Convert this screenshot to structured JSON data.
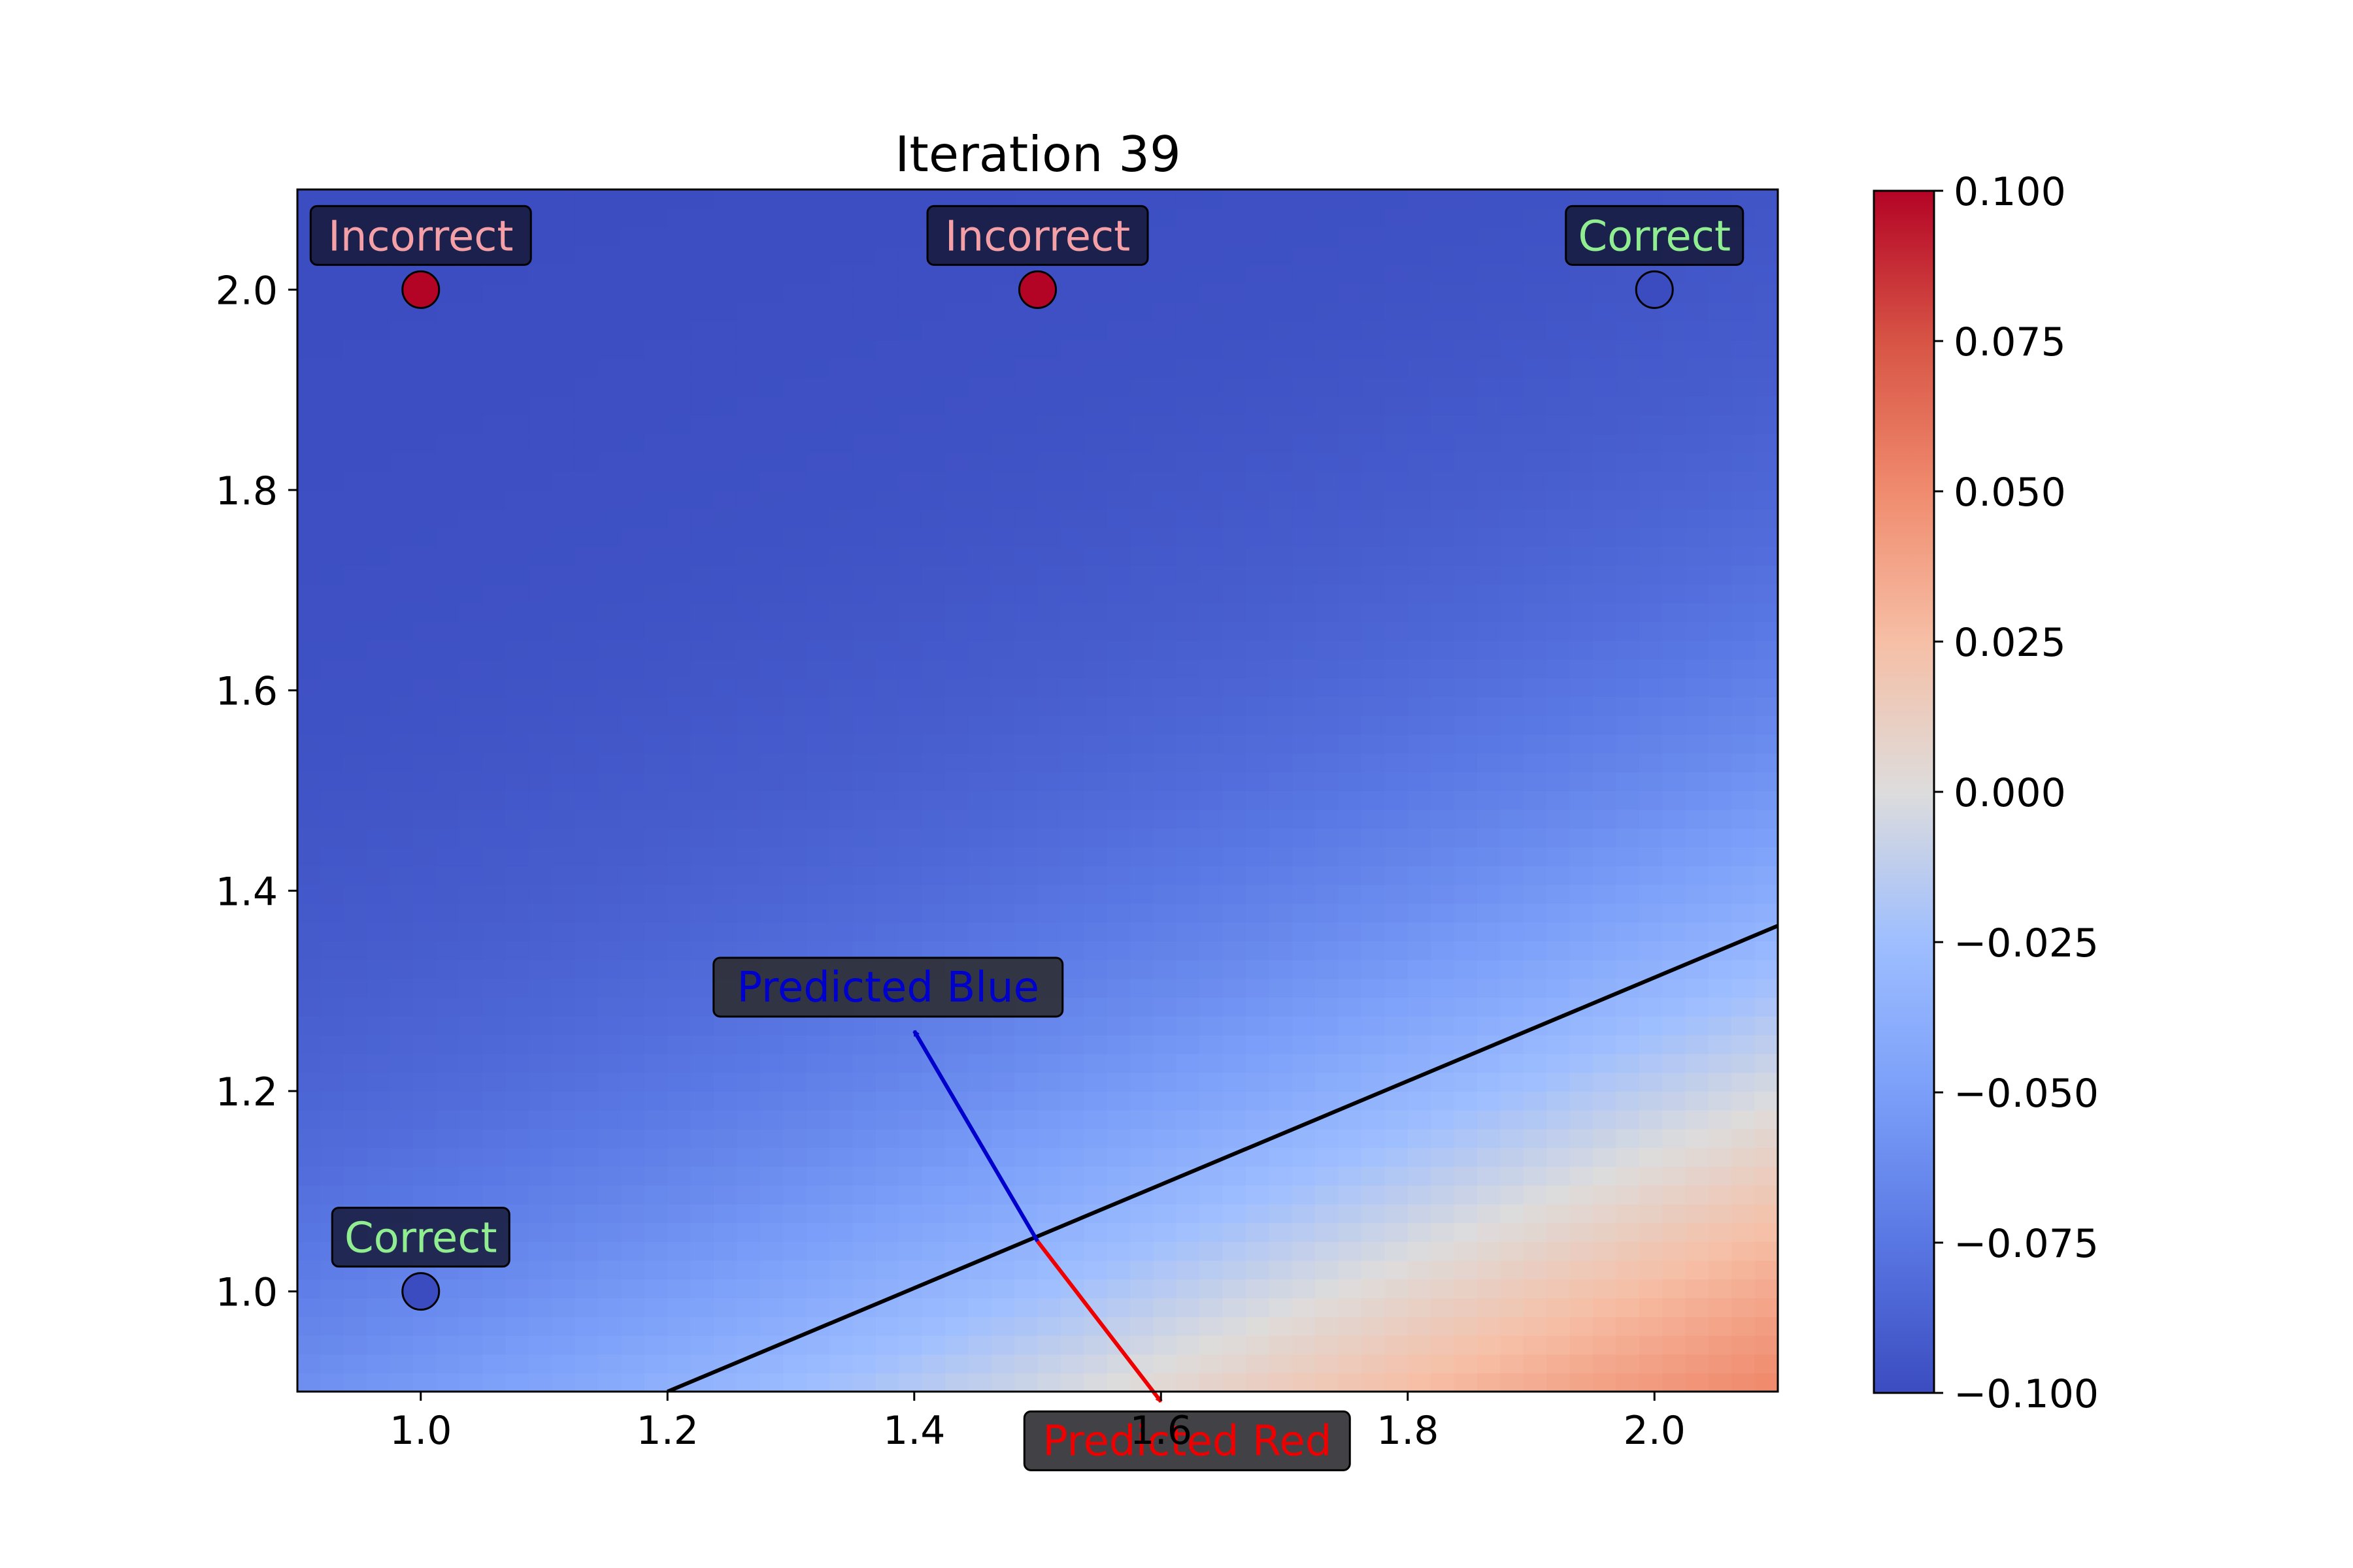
{
  "chart_data": {
    "type": "heatmap",
    "title": "Iteration 39",
    "xlabel": "",
    "ylabel": "",
    "xlim": [
      0.9,
      2.1
    ],
    "ylim": [
      0.9,
      2.1
    ],
    "xticks": [
      1.0,
      1.2,
      1.4,
      1.6,
      1.8,
      2.0
    ],
    "yticks": [
      1.0,
      1.2,
      1.4,
      1.6,
      1.8,
      2.0
    ],
    "xtick_labels": [
      "1.0",
      "1.2",
      "1.4",
      "1.6",
      "1.8",
      "2.0"
    ],
    "ytick_labels": [
      "1.0",
      "1.2",
      "1.4",
      "1.6",
      "1.8",
      "2.0"
    ],
    "colormap": "coolwarm",
    "colorbar": {
      "min": -0.1,
      "max": 0.1,
      "ticks": [
        0.1,
        0.075,
        0.05,
        0.025,
        0.0,
        -0.025,
        -0.05,
        -0.075,
        -0.1
      ],
      "tick_labels": [
        "0.100",
        "0.075",
        "0.050",
        "0.025",
        "0.000",
        "−0.025",
        "−0.050",
        "−0.075",
        "−0.100"
      ]
    },
    "decision_boundary": [
      [
        1.2,
        0.9
      ],
      [
        2.1,
        1.365
      ]
    ],
    "points": [
      {
        "x": 1.0,
        "y": 2.0,
        "class_color": "#b40426",
        "label": "Incorrect",
        "label_color": "#f4a0a6"
      },
      {
        "x": 1.5,
        "y": 2.0,
        "class_color": "#b40426",
        "label": "Incorrect",
        "label_color": "#f4a0a6"
      },
      {
        "x": 2.0,
        "y": 2.0,
        "class_color": "#3b4cc0",
        "label": "Correct",
        "label_color": "#90ee90"
      },
      {
        "x": 1.0,
        "y": 1.0,
        "class_color": "#3b4cc0",
        "label": "Correct",
        "label_color": "#90ee90"
      }
    ],
    "weight_arrows": [
      {
        "from": [
          1.5,
          1.05
        ],
        "to": [
          1.4,
          1.26
        ],
        "label": "Predicted Blue",
        "color": "#0000cc"
      },
      {
        "from": [
          1.5,
          1.05
        ],
        "to": [
          1.6,
          0.89
        ],
        "label": "Predicted Red",
        "color": "#ee0000"
      }
    ]
  }
}
